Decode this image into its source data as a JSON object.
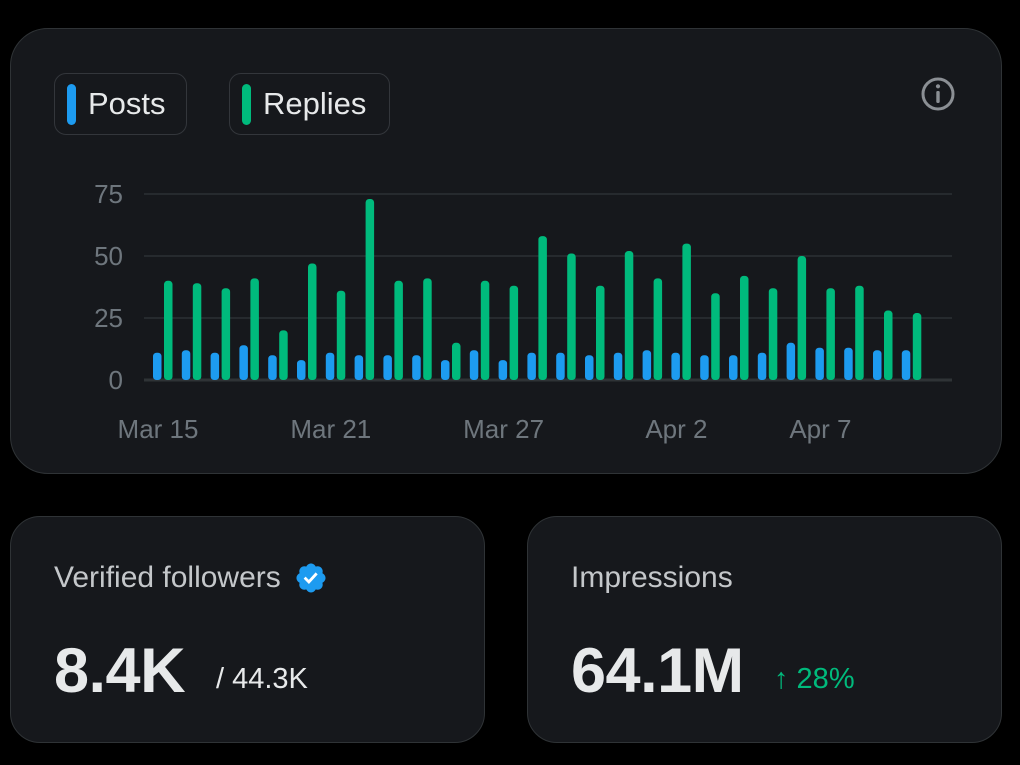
{
  "legend": {
    "posts": {
      "label": "Posts",
      "color": "#1d9bf0"
    },
    "replies": {
      "label": "Replies",
      "color": "#00ba7c"
    }
  },
  "info_icon": "info-circle-icon",
  "chart_data": {
    "type": "bar",
    "x_tick_labels": [
      "Mar 15",
      "Mar 21",
      "Mar 27",
      "Apr 2",
      "Apr 7"
    ],
    "y_ticks": [
      0,
      25,
      50,
      75
    ],
    "ylim": [
      0,
      75
    ],
    "grid": true,
    "legend_position": "top-left",
    "series": [
      {
        "name": "Posts",
        "color": "#1d9bf0",
        "values": [
          11,
          12,
          11,
          14,
          10,
          8,
          11,
          10,
          10,
          10,
          8,
          12,
          8,
          11,
          11,
          10,
          11,
          12,
          11,
          10,
          10,
          11,
          15,
          13,
          13,
          12,
          12
        ]
      },
      {
        "name": "Replies",
        "color": "#00ba7c",
        "values": [
          40,
          39,
          37,
          41,
          20,
          47,
          36,
          73,
          40,
          41,
          15,
          40,
          38,
          58,
          51,
          38,
          52,
          41,
          55,
          35,
          42,
          37,
          50,
          37,
          38,
          28,
          27
        ]
      }
    ]
  },
  "followers": {
    "title": "Verified followers",
    "badge_icon": "verified-badge-icon",
    "value": "8.4K",
    "total": "/ 44.3K"
  },
  "impressions": {
    "title": "Impressions",
    "value": "64.1M",
    "change": "↑ 28%"
  }
}
